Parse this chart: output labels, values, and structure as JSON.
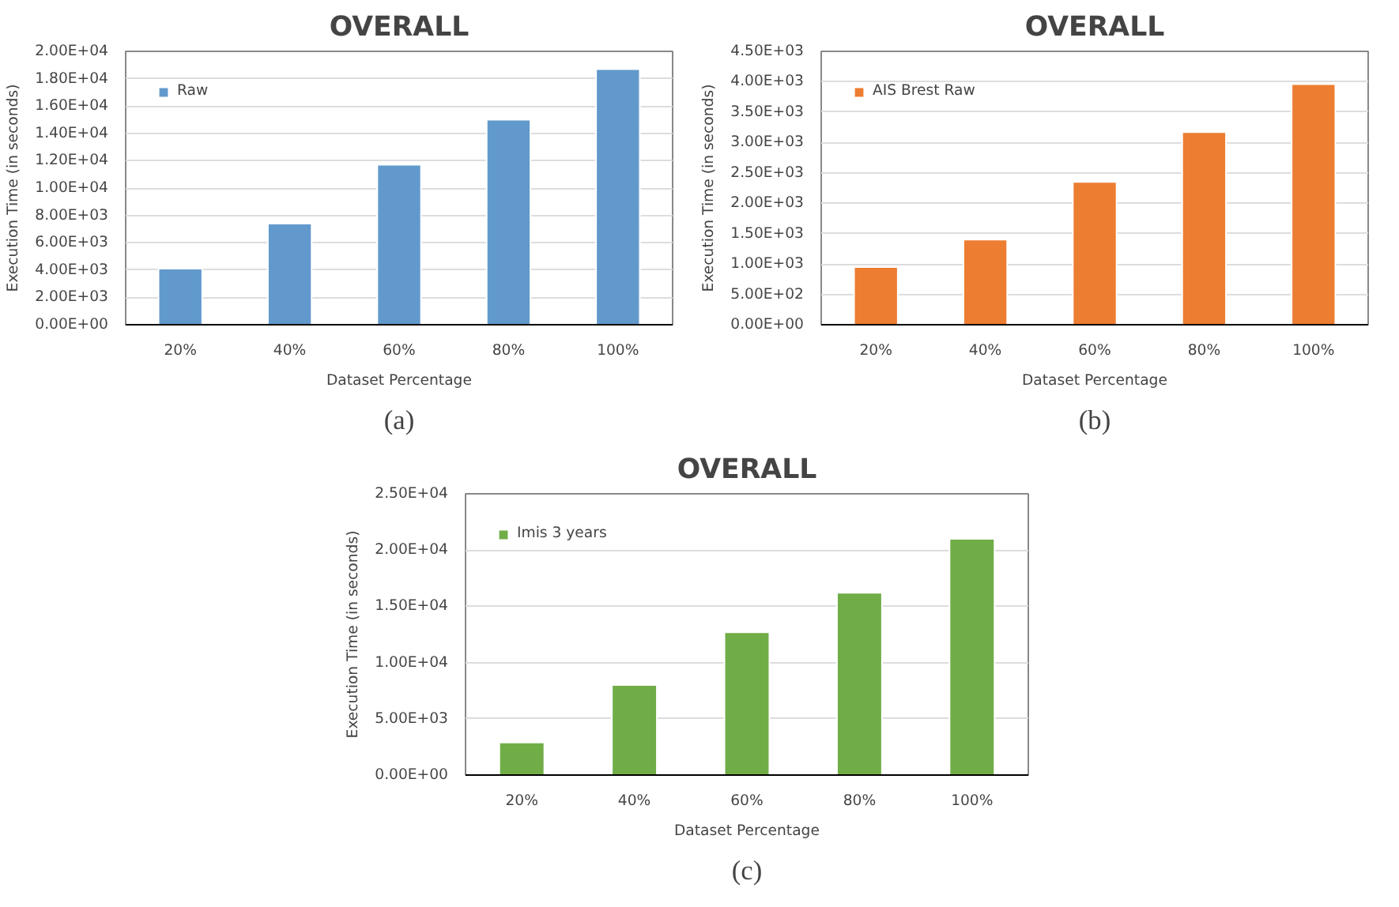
{
  "chart_data": [
    {
      "type": "bar",
      "title": "OVERALL",
      "xlabel": "Dataset Percentage",
      "ylabel": "Execution Time (in seconds)",
      "categories": [
        "20%",
        "40%",
        "60%",
        "80%",
        "100%"
      ],
      "series": [
        {
          "name": "Raw",
          "color": "#6199cc",
          "values": [
            4100,
            7400,
            11700,
            15000,
            18700
          ]
        }
      ],
      "ylim": [
        0,
        20000
      ],
      "yticks": [
        {
          "value": 0,
          "label": "0.00E+00"
        },
        {
          "value": 2000,
          "label": "2.00E+03"
        },
        {
          "value": 4000,
          "label": "4.00E+03"
        },
        {
          "value": 6000,
          "label": "6.00E+03"
        },
        {
          "value": 8000,
          "label": "8.00E+03"
        },
        {
          "value": 10000,
          "label": "1.00E+04"
        },
        {
          "value": 12000,
          "label": "1.20E+04"
        },
        {
          "value": 14000,
          "label": "1.40E+04"
        },
        {
          "value": 16000,
          "label": "1.60E+04"
        },
        {
          "value": 18000,
          "label": "1.80E+04"
        },
        {
          "value": 20000,
          "label": "2.00E+04"
        }
      ],
      "grid": "y",
      "legend": "top left",
      "annotations": [
        "(a)"
      ]
    },
    {
      "type": "bar",
      "title": "OVERALL",
      "xlabel": "Dataset Percentage",
      "ylabel": "Execution Time (in seconds)",
      "categories": [
        "20%",
        "40%",
        "60%",
        "80%",
        "100%"
      ],
      "series": [
        {
          "name": "AIS Brest Raw",
          "color": "#ed7d31",
          "values": [
            950,
            1400,
            2350,
            3170,
            3960
          ]
        }
      ],
      "ylim": [
        0,
        4500
      ],
      "yticks": [
        {
          "value": 0,
          "label": "0.00E+00"
        },
        {
          "value": 500,
          "label": "5.00E+02"
        },
        {
          "value": 1000,
          "label": "1.00E+03"
        },
        {
          "value": 1500,
          "label": "1.50E+03"
        },
        {
          "value": 2000,
          "label": "2.00E+03"
        },
        {
          "value": 2500,
          "label": "2.50E+03"
        },
        {
          "value": 3000,
          "label": "3.00E+03"
        },
        {
          "value": 3500,
          "label": "3.50E+03"
        },
        {
          "value": 4000,
          "label": "4.00E+03"
        },
        {
          "value": 4500,
          "label": "4.50E+03"
        }
      ],
      "grid": "y",
      "legend": "top left",
      "annotations": [
        "(b)"
      ]
    },
    {
      "type": "bar",
      "title": "OVERALL",
      "xlabel": "Dataset Percentage",
      "ylabel": "Execution Time (in seconds)",
      "categories": [
        "20%",
        "40%",
        "60%",
        "80%",
        "100%"
      ],
      "series": [
        {
          "name": "Imis 3 years",
          "color": "#70ad47",
          "values": [
            2900,
            8000,
            12700,
            16200,
            21000
          ]
        }
      ],
      "ylim": [
        0,
        25000
      ],
      "yticks": [
        {
          "value": 0,
          "label": "0.00E+00"
        },
        {
          "value": 5000,
          "label": "5.00E+03"
        },
        {
          "value": 10000,
          "label": "1.00E+04"
        },
        {
          "value": 15000,
          "label": "1.50E+04"
        },
        {
          "value": 20000,
          "label": "2.00E+04"
        },
        {
          "value": 25000,
          "label": "2.50E+04"
        }
      ],
      "grid": "y",
      "legend": "top left",
      "annotations": [
        "(c)"
      ]
    }
  ]
}
